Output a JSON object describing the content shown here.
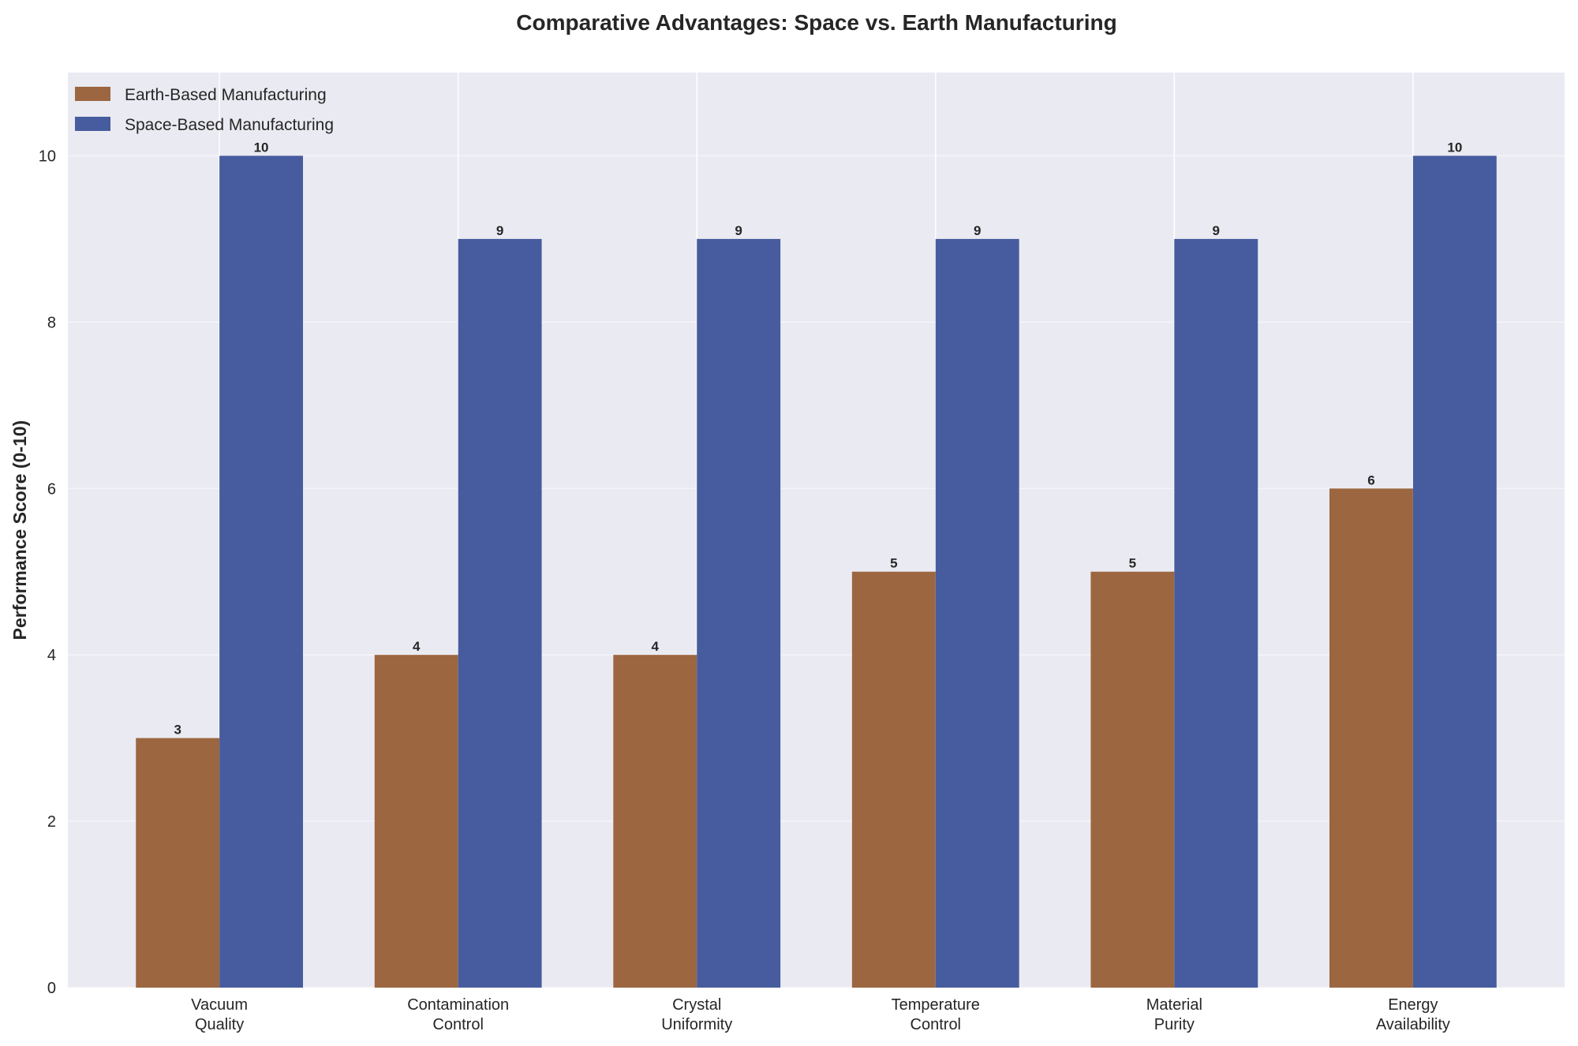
{
  "chart_data": {
    "type": "bar",
    "title": "Comparative Advantages: Space vs. Earth Manufacturing",
    "xlabel": "",
    "ylabel": "Performance Score (0-10)",
    "ylim": [
      0,
      11
    ],
    "yticks": [
      0,
      2,
      4,
      6,
      8,
      10
    ],
    "grid": true,
    "legend_position": "top-left",
    "categories": [
      [
        "Vacuum",
        "Quality"
      ],
      [
        "Contamination",
        "Control"
      ],
      [
        "Crystal",
        "Uniformity"
      ],
      [
        "Temperature",
        "Control"
      ],
      [
        "Material",
        "Purity"
      ],
      [
        "Energy",
        "Availability"
      ]
    ],
    "series": [
      {
        "name": "Earth-Based Manufacturing",
        "color": "#9c6640",
        "values": [
          3,
          4,
          4,
          5,
          5,
          6
        ]
      },
      {
        "name": "Space-Based Manufacturing",
        "color": "#475c9e",
        "values": [
          10,
          9,
          9,
          9,
          9,
          10
        ]
      }
    ]
  }
}
